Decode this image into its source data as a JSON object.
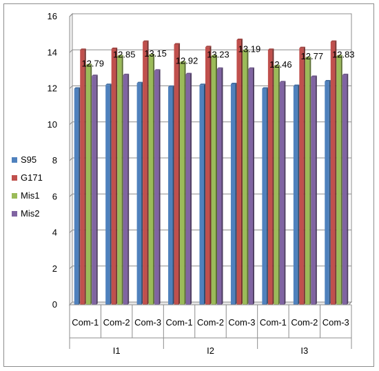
{
  "chart_data": {
    "type": "bar",
    "groups": [
      "I1",
      "I2",
      "I3"
    ],
    "categories": [
      "Com-1",
      "Com-2",
      "Com-3",
      "Com-1",
      "Com-2",
      "Com-3",
      "Com-1",
      "Com-2",
      "Com-3"
    ],
    "series": [
      {
        "name": "S95",
        "color": "#4f81bd",
        "values": [
          12.0,
          12.2,
          12.3,
          12.1,
          12.2,
          12.25,
          12.0,
          12.15,
          12.4
        ]
      },
      {
        "name": "G171",
        "color": "#c0504d",
        "values": [
          14.15,
          14.2,
          14.6,
          14.45,
          14.3,
          14.7,
          14.15,
          14.25,
          14.6
        ]
      },
      {
        "name": "Mis1",
        "color": "#9bbb59",
        "values": [
          13.3,
          13.8,
          13.85,
          13.45,
          13.8,
          14.1,
          13.25,
          13.7,
          13.8
        ]
      },
      {
        "name": "Mis2",
        "color": "#8064a2",
        "values": [
          12.7,
          12.75,
          13.0,
          12.8,
          13.1,
          13.1,
          12.35,
          12.65,
          12.75
        ]
      }
    ],
    "data_labels": [
      "12.79",
      "12.85",
      "13.15",
      "12.92",
      "13.23",
      "13.19",
      "12.46",
      "12.77",
      "12.83"
    ],
    "ylim": [
      0,
      16
    ],
    "yticks": [
      0,
      2,
      4,
      6,
      8,
      10,
      12,
      14,
      16
    ],
    "grid": true,
    "legend_position": "left",
    "title": "",
    "xlabel": "",
    "ylabel": ""
  }
}
